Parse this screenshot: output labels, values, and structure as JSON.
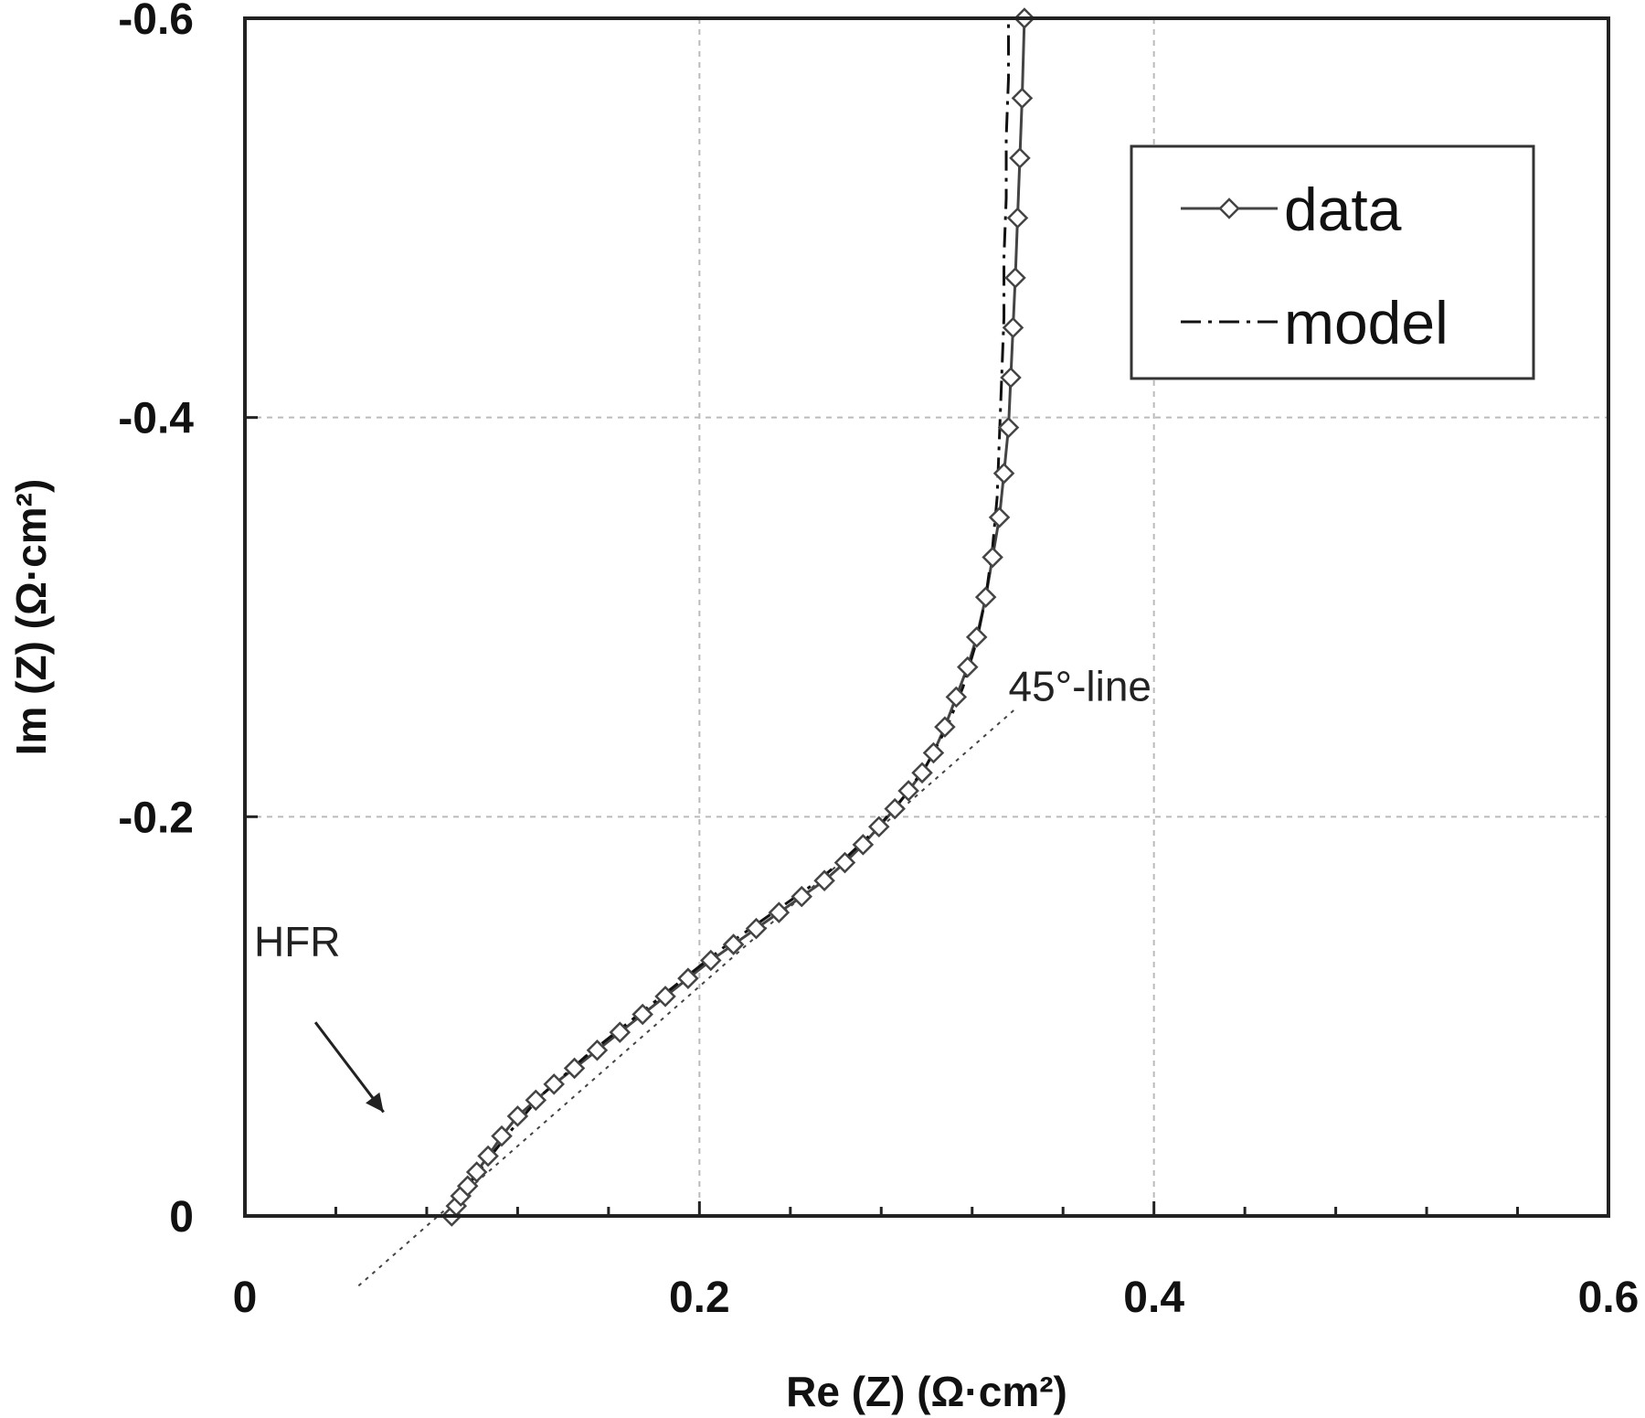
{
  "chart_data": {
    "type": "scatter",
    "xlabel": "Re (Z) (Ω·cm²)",
    "ylabel": "Im (Z) (Ω·cm²)",
    "xlim": [
      0,
      0.6
    ],
    "ylim": [
      0,
      -0.6
    ],
    "y_axis_inverted": true,
    "grid": true,
    "legend_position": "top-right",
    "x_ticks": [
      {
        "value": 0,
        "label": "0"
      },
      {
        "value": 0.2,
        "label": "0.2"
      },
      {
        "value": 0.4,
        "label": "0.4"
      },
      {
        "value": 0.6,
        "label": "0.6"
      }
    ],
    "y_ticks": [
      {
        "value": 0,
        "label": "0"
      },
      {
        "value": -0.2,
        "label": "-0.2"
      },
      {
        "value": -0.4,
        "label": "-0.4"
      },
      {
        "value": -0.6,
        "label": "-0.6"
      }
    ],
    "series": [
      {
        "name": "data",
        "style": "solid line with open diamond markers",
        "color": "#444444",
        "points": [
          [
            0.091,
            0.0
          ],
          [
            0.093,
            -0.005
          ],
          [
            0.095,
            -0.01
          ],
          [
            0.098,
            -0.015
          ],
          [
            0.102,
            -0.022
          ],
          [
            0.107,
            -0.03
          ],
          [
            0.113,
            -0.04
          ],
          [
            0.12,
            -0.05
          ],
          [
            0.128,
            -0.058
          ],
          [
            0.136,
            -0.066
          ],
          [
            0.145,
            -0.074
          ],
          [
            0.155,
            -0.083
          ],
          [
            0.165,
            -0.092
          ],
          [
            0.175,
            -0.101
          ],
          [
            0.185,
            -0.11
          ],
          [
            0.195,
            -0.119
          ],
          [
            0.205,
            -0.128
          ],
          [
            0.215,
            -0.136
          ],
          [
            0.225,
            -0.144
          ],
          [
            0.235,
            -0.152
          ],
          [
            0.245,
            -0.16
          ],
          [
            0.255,
            -0.168
          ],
          [
            0.264,
            -0.177
          ],
          [
            0.272,
            -0.186
          ],
          [
            0.279,
            -0.195
          ],
          [
            0.286,
            -0.204
          ],
          [
            0.292,
            -0.213
          ],
          [
            0.298,
            -0.222
          ],
          [
            0.303,
            -0.232
          ],
          [
            0.308,
            -0.245
          ],
          [
            0.313,
            -0.26
          ],
          [
            0.318,
            -0.275
          ],
          [
            0.322,
            -0.29
          ],
          [
            0.326,
            -0.31
          ],
          [
            0.329,
            -0.33
          ],
          [
            0.332,
            -0.35
          ],
          [
            0.334,
            -0.372
          ],
          [
            0.336,
            -0.395
          ],
          [
            0.337,
            -0.42
          ],
          [
            0.338,
            -0.445
          ],
          [
            0.339,
            -0.47
          ],
          [
            0.34,
            -0.5
          ],
          [
            0.341,
            -0.53
          ],
          [
            0.342,
            -0.56
          ],
          [
            0.343,
            -0.6
          ]
        ]
      },
      {
        "name": "model",
        "style": "dash-dot line",
        "color": "#111111",
        "points": [
          [
            0.091,
            0.0
          ],
          [
            0.1,
            -0.018
          ],
          [
            0.115,
            -0.04
          ],
          [
            0.13,
            -0.06
          ],
          [
            0.15,
            -0.08
          ],
          [
            0.17,
            -0.098
          ],
          [
            0.19,
            -0.116
          ],
          [
            0.21,
            -0.134
          ],
          [
            0.23,
            -0.15
          ],
          [
            0.25,
            -0.166
          ],
          [
            0.265,
            -0.18
          ],
          [
            0.278,
            -0.194
          ],
          [
            0.29,
            -0.21
          ],
          [
            0.3,
            -0.226
          ],
          [
            0.309,
            -0.245
          ],
          [
            0.316,
            -0.265
          ],
          [
            0.322,
            -0.288
          ],
          [
            0.326,
            -0.31
          ],
          [
            0.329,
            -0.335
          ],
          [
            0.331,
            -0.36
          ],
          [
            0.332,
            -0.39
          ],
          [
            0.333,
            -0.42
          ],
          [
            0.334,
            -0.45
          ],
          [
            0.334,
            -0.48
          ],
          [
            0.335,
            -0.51
          ],
          [
            0.335,
            -0.54
          ],
          [
            0.336,
            -0.57
          ],
          [
            0.336,
            -0.6
          ]
        ]
      }
    ],
    "reference_line": {
      "style": "thin dotted",
      "points": [
        [
          0.05,
          0.035
        ],
        [
          0.34,
          -0.255
        ]
      ]
    },
    "annotations": {
      "line_label": "45°-line",
      "hfr_label": "HFR"
    }
  }
}
